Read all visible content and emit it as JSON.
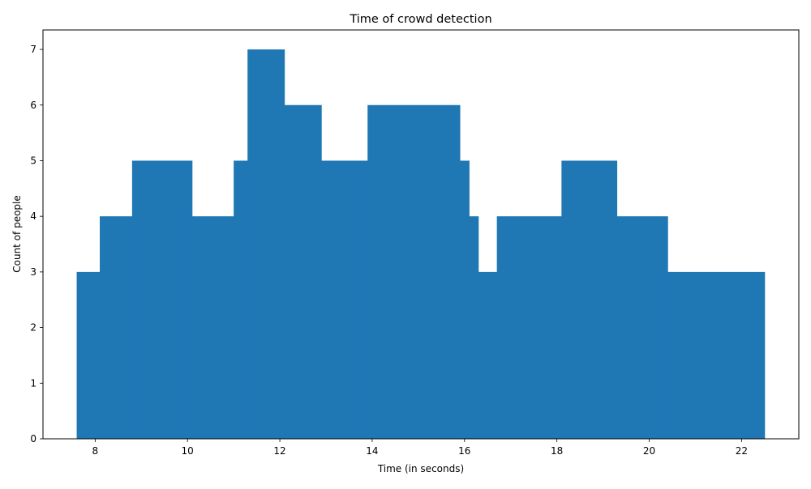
{
  "chart_data": {
    "type": "bar",
    "title": "Time of crowd detection",
    "xlabel": "Time (in seconds)",
    "ylabel": "Count of people",
    "xlim": [
      6.87,
      23.24
    ],
    "ylim": [
      0,
      7.35
    ],
    "x_ticks": [
      8,
      10,
      12,
      14,
      16,
      18,
      20,
      22
    ],
    "y_ticks": [
      0,
      1,
      2,
      3,
      4,
      5,
      6,
      7
    ],
    "grid": false,
    "bar_color": "#1f77b4",
    "bars": [
      {
        "x0": 7.6,
        "x1": 8.1,
        "value": 3
      },
      {
        "x0": 8.1,
        "x1": 8.8,
        "value": 4
      },
      {
        "x0": 8.8,
        "x1": 10.1,
        "value": 5
      },
      {
        "x0": 10.1,
        "x1": 11.0,
        "value": 4
      },
      {
        "x0": 11.0,
        "x1": 11.3,
        "value": 5
      },
      {
        "x0": 11.3,
        "x1": 12.1,
        "value": 7
      },
      {
        "x0": 12.1,
        "x1": 12.9,
        "value": 6
      },
      {
        "x0": 12.9,
        "x1": 13.9,
        "value": 5
      },
      {
        "x0": 13.9,
        "x1": 15.9,
        "value": 6
      },
      {
        "x0": 15.9,
        "x1": 16.1,
        "value": 5
      },
      {
        "x0": 16.1,
        "x1": 16.3,
        "value": 4
      },
      {
        "x0": 16.3,
        "x1": 16.7,
        "value": 3
      },
      {
        "x0": 16.7,
        "x1": 18.1,
        "value": 4
      },
      {
        "x0": 18.1,
        "x1": 19.3,
        "value": 5
      },
      {
        "x0": 19.3,
        "x1": 20.4,
        "value": 4
      },
      {
        "x0": 20.4,
        "x1": 22.5,
        "value": 3
      }
    ]
  }
}
